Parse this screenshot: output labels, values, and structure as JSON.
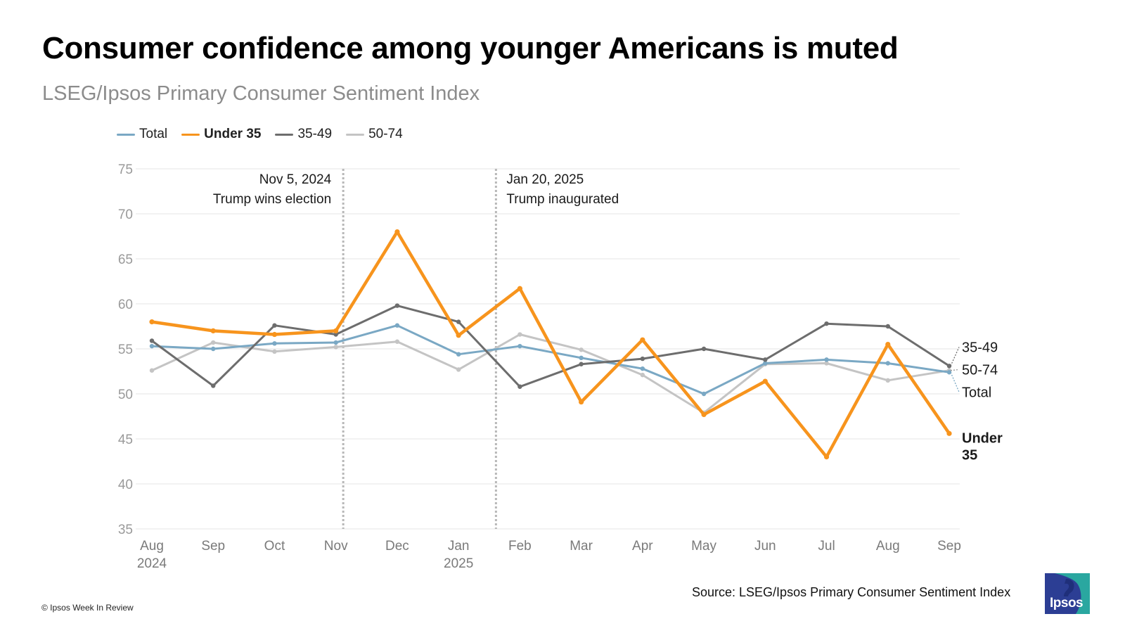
{
  "header": {
    "title": "Consumer confidence among younger Americans is muted",
    "subtitle": "LSEG/Ipsos Primary Consumer Sentiment Index"
  },
  "footer": {
    "source": "Source: LSEG/Ipsos Primary Consumer Sentiment Index",
    "copyright": "© Ipsos Week In Review",
    "logo_text": "Ipsos"
  },
  "colors": {
    "total": "#7aa8c4",
    "under35": "#f7941d",
    "age35_49": "#6d6d6d",
    "age50_74": "#c4c4c4",
    "logo": "#2c3e94"
  },
  "chart_data": {
    "type": "line",
    "title": "Consumer confidence among younger Americans is muted",
    "subtitle": "LSEG/Ipsos Primary Consumer Sentiment Index",
    "x": [
      "Aug 2024",
      "Sep",
      "Oct",
      "Nov",
      "Dec",
      "Jan 2025",
      "Feb",
      "Mar",
      "Apr",
      "May",
      "Jun",
      "Jul",
      "Aug",
      "Sep"
    ],
    "x_tick_lines": [
      [
        "Aug",
        "2024"
      ],
      [
        "Sep"
      ],
      [
        "Oct"
      ],
      [
        "Nov"
      ],
      [
        "Dec"
      ],
      [
        "Jan",
        "2025"
      ],
      [
        "Feb"
      ],
      [
        "Mar"
      ],
      [
        "Apr"
      ],
      [
        "May"
      ],
      [
        "Jun"
      ],
      [
        "Jul"
      ],
      [
        "Aug"
      ],
      [
        "Sep"
      ]
    ],
    "ylim": [
      35,
      75
    ],
    "yticks": [
      35,
      40,
      45,
      50,
      55,
      60,
      65,
      70,
      75
    ],
    "grid": true,
    "legend_position": "top-left",
    "series": [
      {
        "name": "Total",
        "color": "#7aa8c4",
        "width": 3,
        "bold_label": false,
        "values": [
          55.3,
          55.0,
          55.6,
          55.7,
          57.6,
          54.4,
          55.3,
          54.0,
          52.8,
          50.0,
          53.4,
          53.8,
          53.4,
          52.4
        ]
      },
      {
        "name": "Under 35",
        "color": "#f7941d",
        "width": 4.5,
        "bold_label": true,
        "values": [
          58.0,
          57.0,
          56.6,
          57.0,
          68.0,
          56.5,
          61.7,
          49.1,
          56.0,
          47.7,
          51.4,
          43.0,
          55.5,
          45.6
        ]
      },
      {
        "name": "35-49",
        "color": "#6d6d6d",
        "width": 3,
        "bold_label": false,
        "values": [
          55.9,
          50.9,
          57.6,
          56.6,
          59.8,
          58.0,
          50.8,
          53.3,
          53.9,
          55.0,
          53.8,
          57.8,
          57.5,
          53.1
        ]
      },
      {
        "name": "50-74",
        "color": "#c4c4c4",
        "width": 3,
        "bold_label": false,
        "values": [
          52.6,
          55.7,
          54.7,
          55.2,
          55.8,
          52.7,
          56.6,
          54.9,
          52.1,
          47.9,
          53.3,
          53.4,
          51.5,
          52.6
        ]
      }
    ],
    "end_labels": [
      {
        "series": "35-49",
        "lines": [
          "35-49"
        ],
        "y": 55.2,
        "bold": false
      },
      {
        "series": "50-74",
        "lines": [
          "50-74"
        ],
        "y": 52.7,
        "bold": false
      },
      {
        "series": "Total",
        "lines": [
          "Total"
        ],
        "y": 50.2,
        "bold": false
      },
      {
        "series": "Under 35",
        "lines": [
          "Under",
          "35"
        ],
        "y": 45.1,
        "bold": true
      }
    ],
    "annotations": [
      {
        "x": 3.12,
        "lines": [
          "Nov 5, 2024",
          "Trump wins election"
        ],
        "align": "right"
      },
      {
        "x": 5.61,
        "lines": [
          "Jan 20, 2025",
          "Trump inaugurated"
        ],
        "align": "left"
      }
    ]
  }
}
